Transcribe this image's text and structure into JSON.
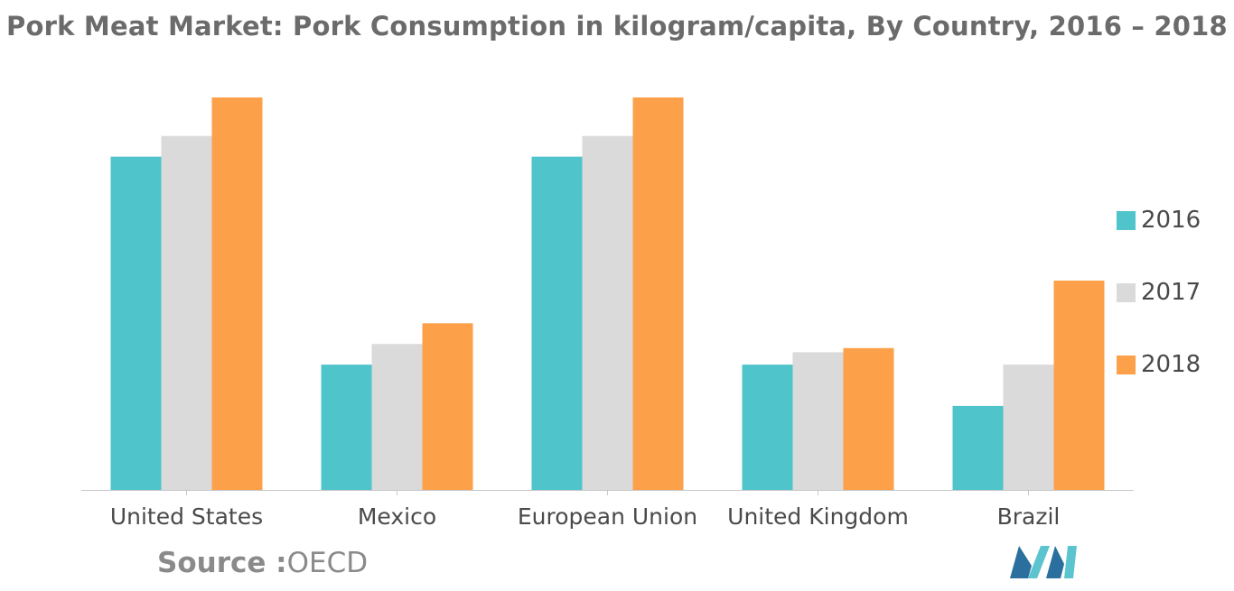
{
  "title": "Pork Meat Market: Pork Consumption in kilogram/capita, By Country, 2016 – 2018",
  "source": {
    "key": "Source :",
    "value": "OECD"
  },
  "colors": {
    "2016": "#4fc4ca",
    "2017": "#dadada",
    "2018": "#fca04a",
    "axis": "#c8c8c8"
  },
  "chart_data": {
    "type": "bar",
    "title": "Pork Meat Market: Pork Consumption in kilogram/capita, By Country, 2016 – 2018",
    "xlabel": "",
    "ylabel": "",
    "categories": [
      "United States",
      "Mexico",
      "European Union",
      "United Kingdom",
      "Brazil"
    ],
    "series": [
      {
        "name": "2016",
        "values": [
          24.2,
          9.1,
          24.2,
          9.1,
          6.1
        ]
      },
      {
        "name": "2017",
        "values": [
          25.7,
          10.6,
          25.7,
          10.0,
          9.1
        ]
      },
      {
        "name": "2018",
        "values": [
          28.5,
          12.1,
          28.5,
          10.3,
          15.2
        ]
      }
    ],
    "ylim": [
      0,
      30
    ],
    "grid": false,
    "y_axis_visible": false,
    "legend_position": "right"
  }
}
